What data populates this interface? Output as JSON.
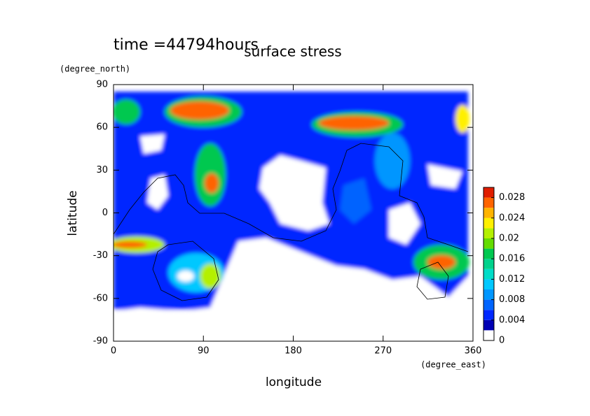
{
  "chart_data": {
    "type": "contour",
    "title": "surface stress",
    "subtitle": "time =44794hours",
    "x_label": "longitude",
    "y_label": "latitude",
    "x_unit": "(degree_east)",
    "y_unit": "(degree_north)",
    "xlim": [
      0,
      360
    ],
    "xticks": [
      0,
      90,
      180,
      270,
      360
    ],
    "ylim": [
      -90,
      90
    ],
    "yticks": [
      -90,
      -60,
      -30,
      0,
      30,
      60,
      90
    ],
    "colorbar": {
      "levels": [
        0,
        0.002,
        0.004,
        0.006,
        0.008,
        0.01,
        0.012,
        0.014,
        0.016,
        0.018,
        0.02,
        0.022,
        0.024,
        0.026,
        0.028,
        0.03
      ],
      "colors": [
        "#ffffff",
        "#0000b4",
        "#0028ff",
        "#0064ff",
        "#0096ff",
        "#00c8ff",
        "#00dcc8",
        "#00d28c",
        "#00c850",
        "#64dc00",
        "#b4f000",
        "#fff000",
        "#ffb400",
        "#ff6400",
        "#e01e00"
      ],
      "ticks": [
        0,
        0.004,
        0.008,
        0.012,
        0.016,
        0.02,
        0.024,
        0.028
      ]
    }
  }
}
